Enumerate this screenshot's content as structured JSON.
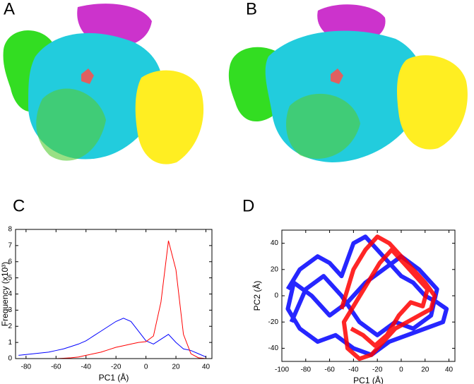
{
  "panels": [
    "A",
    "B",
    "C",
    "D"
  ],
  "chart_data": [
    {
      "type": "line",
      "x_label": "PC1 (Å)",
      "y_label": "Frequency (x10³)",
      "x": [
        -85,
        -80,
        -75,
        -70,
        -65,
        -60,
        -55,
        -50,
        -45,
        -40,
        -35,
        -30,
        -25,
        -20,
        -15,
        -10,
        -5,
        0,
        5,
        10,
        15,
        20,
        25,
        30,
        35,
        40
      ],
      "series": [
        {
          "color": "#0000ff",
          "values": [
            0.2,
            0.25,
            0.3,
            0.35,
            0.4,
            0.5,
            0.6,
            0.75,
            0.9,
            1.1,
            1.4,
            1.7,
            2.0,
            2.3,
            2.5,
            2.3,
            1.7,
            1.1,
            0.9,
            1.2,
            1.5,
            1.0,
            0.6,
            0.5,
            0.3,
            0.1
          ]
        },
        {
          "color": "#ff0000",
          "values": [
            0,
            0,
            0,
            0,
            0,
            0,
            0.02,
            0.05,
            0.1,
            0.2,
            0.3,
            0.4,
            0.55,
            0.7,
            0.8,
            0.9,
            1.0,
            1.05,
            1.4,
            3.5,
            7.3,
            5.5,
            1.5,
            0.3,
            0.05,
            0
          ]
        }
      ],
      "xlim": [
        -87,
        44
      ],
      "xticks": [
        -80,
        -60,
        -40,
        -20,
        0,
        20,
        40
      ],
      "ylim": [
        0,
        8
      ],
      "yticks": [
        0,
        1,
        2,
        3,
        4,
        5,
        6,
        7,
        8
      ]
    },
    {
      "type": "trajectory",
      "x_label": "PC1 (Å)",
      "y_label": "PC2 (Å)",
      "series": [
        {
          "color": "#0000ff",
          "x": [
            -95,
            -85,
            -70,
            -60,
            -50,
            -40,
            -30,
            -20,
            -10,
            0,
            10,
            20,
            30,
            38,
            35,
            20,
            5,
            -10,
            -25,
            -40,
            -55,
            -70,
            -85,
            -95,
            -90,
            -75,
            -60,
            -45,
            -30,
            -15,
            0,
            15,
            30,
            25,
            10,
            -5,
            -20,
            -35,
            -50,
            -65,
            -80,
            -92
          ],
          "y": [
            5,
            20,
            30,
            25,
            15,
            40,
            45,
            35,
            25,
            15,
            10,
            0,
            -5,
            -10,
            -20,
            -25,
            -30,
            -35,
            -45,
            -40,
            -30,
            -35,
            -25,
            -10,
            10,
            0,
            -15,
            -5,
            10,
            20,
            30,
            20,
            5,
            -15,
            -25,
            -20,
            -30,
            -20,
            0,
            15,
            5,
            -20
          ]
        },
        {
          "color": "#ff0000",
          "x": [
            -50,
            -40,
            -30,
            -20,
            -10,
            0,
            10,
            20,
            28,
            25,
            15,
            5,
            -5,
            -15,
            -25,
            -35,
            -45,
            -48,
            -38,
            -28,
            -18,
            -8,
            2,
            12,
            22,
            18,
            8,
            -2,
            -12,
            -22,
            -32,
            -42
          ],
          "y": [
            -10,
            20,
            35,
            45,
            40,
            30,
            20,
            10,
            0,
            -10,
            -15,
            -20,
            -25,
            -35,
            -45,
            -48,
            -40,
            -20,
            -5,
            10,
            25,
            35,
            25,
            15,
            5,
            -8,
            -5,
            -15,
            -30,
            -38,
            -30,
            -25
          ]
        }
      ],
      "xlim": [
        -100,
        45
      ],
      "xticks": [
        -100,
        -80,
        -60,
        -40,
        -20,
        0,
        20,
        40
      ],
      "ylim": [
        -50,
        50
      ],
      "yticks": [
        -40,
        -20,
        0,
        20,
        40
      ]
    }
  ]
}
